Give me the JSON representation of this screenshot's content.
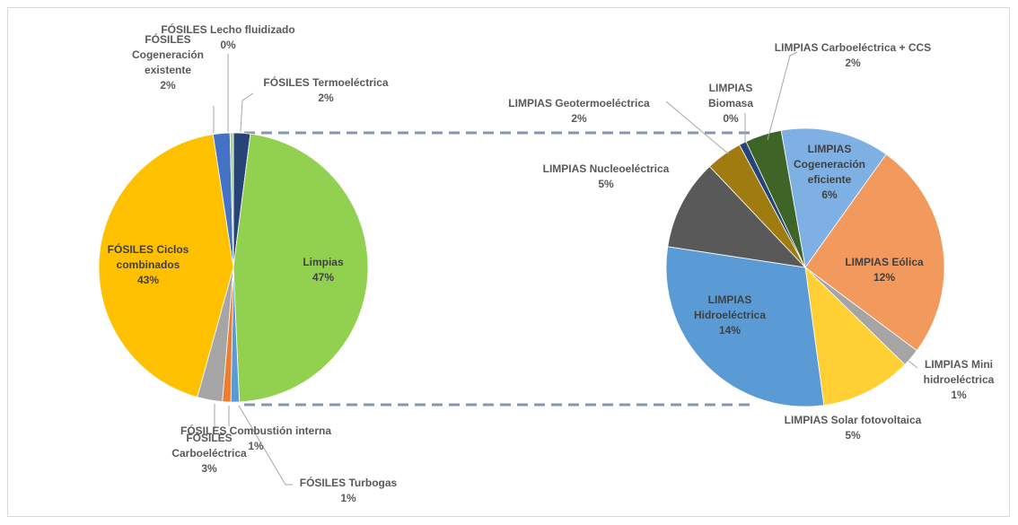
{
  "chart_data": [
    {
      "type": "pie",
      "categories": [
        "FÓSILES Termoeléctrica",
        "Limpias",
        "FÓSILES Turbogas",
        "FÓSILES Combustión interna",
        "FÓSILES Carboeléctrica",
        "FÓSILES Ciclos combinados",
        "FÓSILES Cogeneración existente",
        "FÓSILES Lecho fluidizado"
      ],
      "values": [
        2,
        47,
        1,
        1,
        3,
        43,
        2,
        0.4
      ],
      "value_labels": [
        "2%",
        "47%",
        "1%",
        "1%",
        "3%",
        "43%",
        "2%",
        "0%"
      ],
      "colors": [
        "#264478",
        "#92d050",
        "#5b9bd5",
        "#ed7d31",
        "#a5a5a5",
        "#ffc000",
        "#4472c4",
        "#a9d18e"
      ]
    },
    {
      "type": "pie",
      "categories": [
        "LIMPIAS Cogeneración eficiente",
        "LIMPIAS Eólica",
        "LIMPIAS Mini hidroeléctrica",
        "LIMPIAS Solar fotovoltaica",
        "LIMPIAS Hidroeléctrica",
        "LIMPIAS Nucleoeléctrica",
        "LIMPIAS Geotermoeléctrica",
        "LIMPIAS Biomasa",
        "LIMPIAS Carboeléctrica + CCS"
      ],
      "values": [
        6,
        12,
        1,
        5,
        14,
        5,
        2,
        0.4,
        2
      ],
      "value_labels": [
        "6%",
        "12%",
        "1%",
        "5%",
        "14%",
        "5%",
        "2%",
        "0%",
        "2%"
      ],
      "colors": [
        "#7fb0e3",
        "#f29a5e",
        "#a5a5a5",
        "#ffcf33",
        "#5b9bd5",
        "#595959",
        "#a07b10",
        "#264478",
        "#3e6428"
      ]
    }
  ]
}
